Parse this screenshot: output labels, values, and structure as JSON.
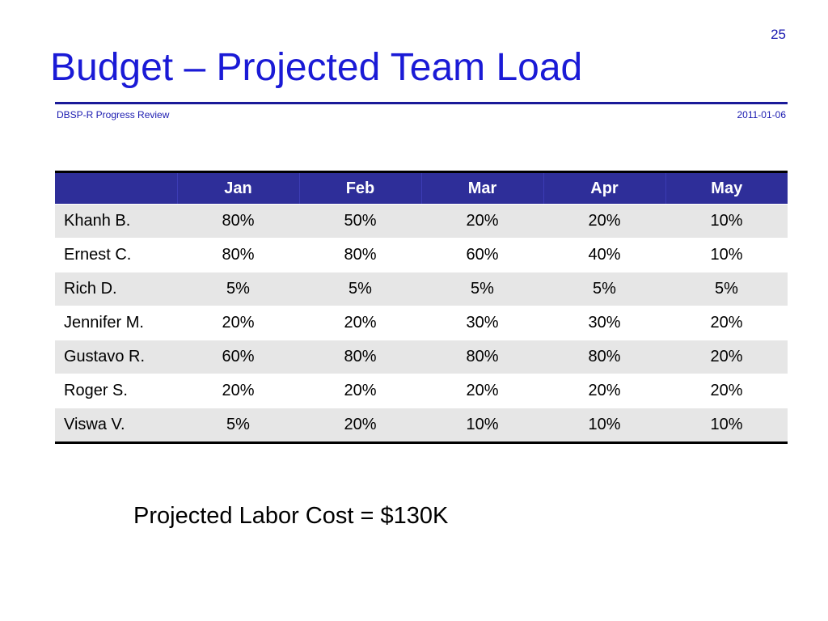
{
  "slide": {
    "page_number": "25",
    "title": "Budget – Projected Team Load",
    "subtitle": "DBSP-R Progress Review",
    "date": "2011-01-06",
    "cost_note": "Projected Labor Cost = $130K"
  },
  "table": {
    "headers": [
      "",
      "Jan",
      "Feb",
      "Mar",
      "Apr",
      "May"
    ],
    "rows": [
      {
        "name": "Khanh B.",
        "values": [
          "80%",
          "50%",
          "20%",
          "20%",
          "10%"
        ]
      },
      {
        "name": "Ernest C.",
        "values": [
          "80%",
          "80%",
          "60%",
          "40%",
          "10%"
        ]
      },
      {
        "name": "Rich D.",
        "values": [
          "5%",
          "5%",
          "5%",
          "5%",
          "5%"
        ]
      },
      {
        "name": "Jennifer M.",
        "values": [
          "20%",
          "20%",
          "30%",
          "30%",
          "20%"
        ]
      },
      {
        "name": "Gustavo R.",
        "values": [
          "60%",
          "80%",
          "80%",
          "80%",
          "20%"
        ]
      },
      {
        "name": "Roger S.",
        "values": [
          "20%",
          "20%",
          "20%",
          "20%",
          "20%"
        ]
      },
      {
        "name": "Viswa V.",
        "values": [
          "5%",
          "20%",
          "10%",
          "10%",
          "10%"
        ]
      }
    ]
  },
  "colors": {
    "title": "#1a1ad6",
    "header_bg": "#2e2e99",
    "rule": "#1a1a99",
    "row_shade": "#e6e6e6"
  }
}
